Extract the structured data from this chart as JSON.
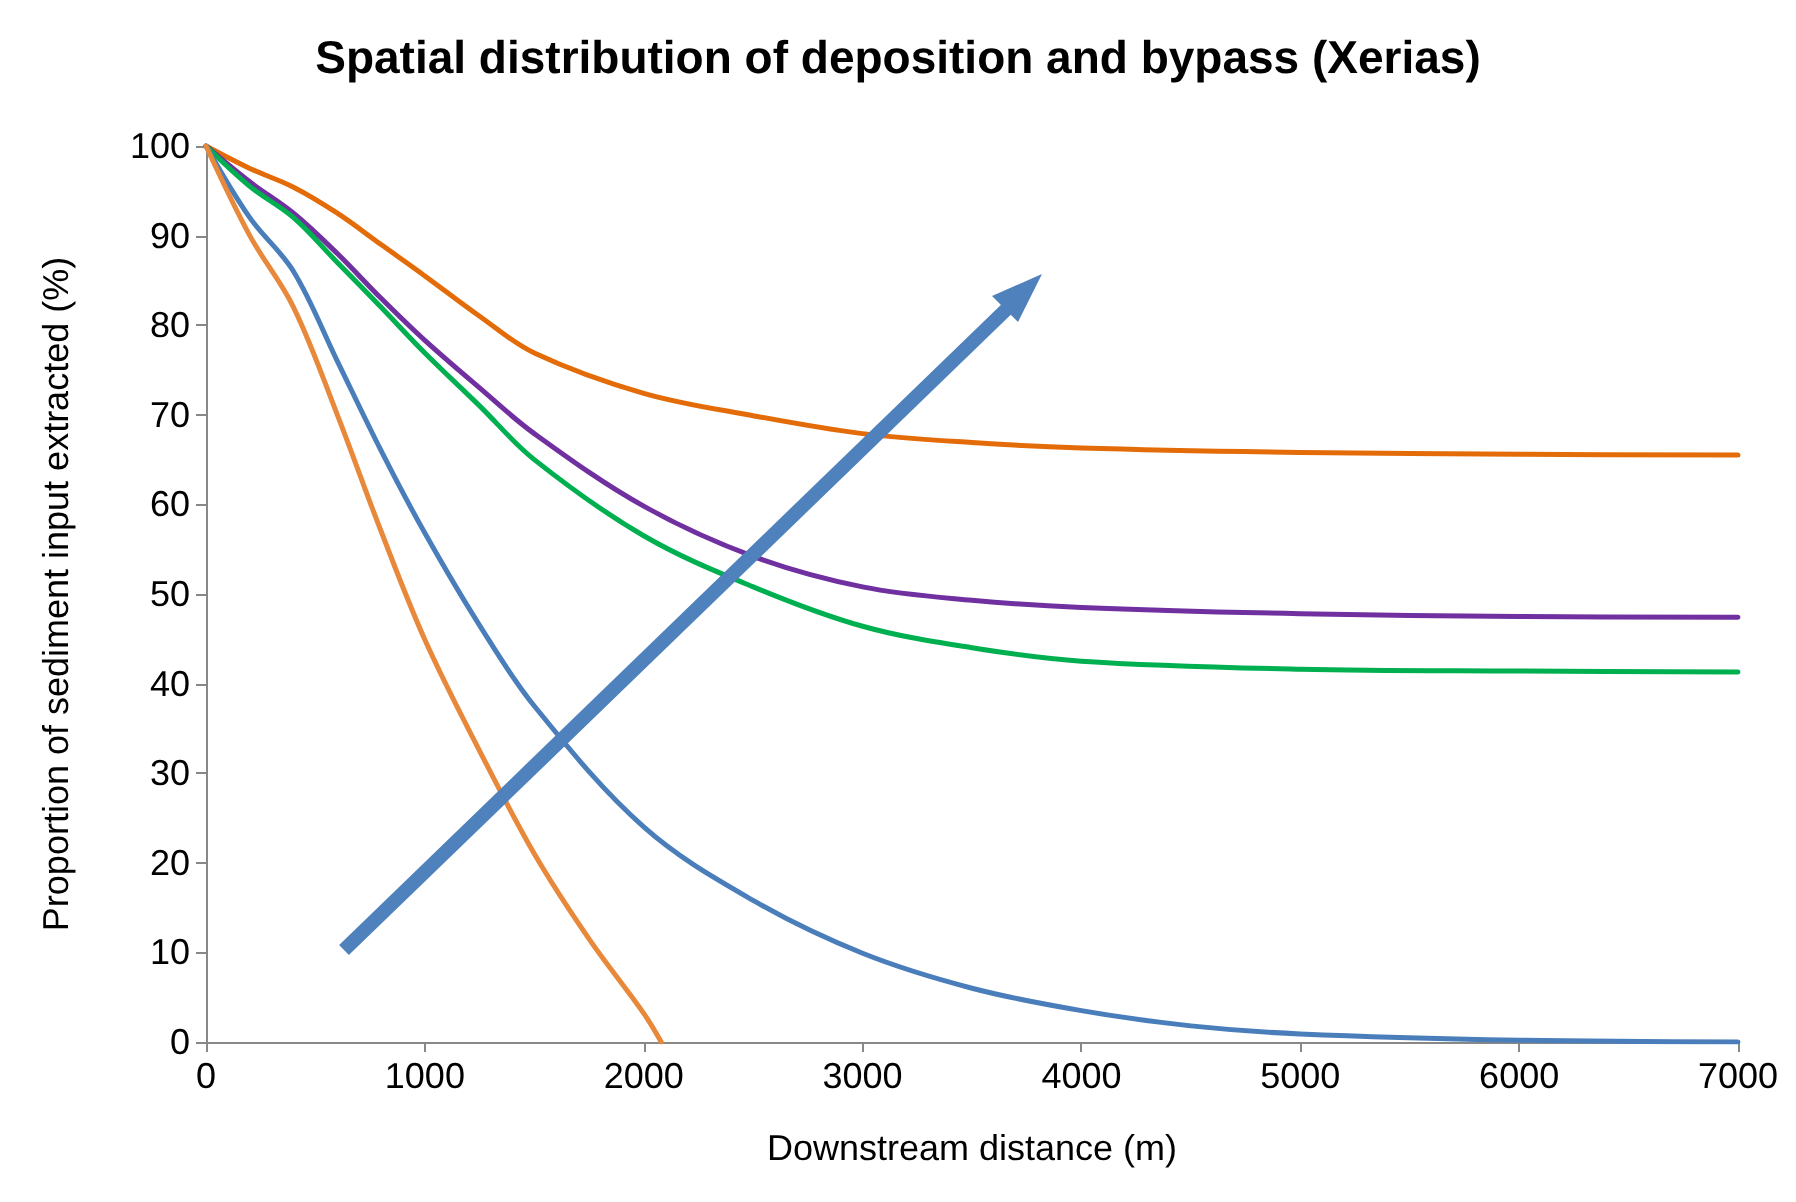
{
  "chart_data": {
    "type": "line",
    "title": "Spatial distribution of deposition and bypass (Xerias)",
    "xlabel": "Downstream distance (m)",
    "ylabel": "Proportion of sediment input extracted (%)",
    "xlim": [
      0,
      7000
    ],
    "xticks": [
      0,
      1000,
      2000,
      3000,
      4000,
      5000,
      6000,
      7000
    ],
    "ylim": [
      0,
      100
    ],
    "yticks": [
      0,
      10,
      20,
      30,
      40,
      50,
      60,
      70,
      80,
      90,
      100
    ],
    "grid": false,
    "marker": "none",
    "line_style": "solid",
    "series": [
      {
        "color": "#e36c09",
        "x": [
          0,
          200,
          400,
          600,
          800,
          1000,
          1250,
          1500,
          2000,
          2500,
          3000,
          3500,
          4000,
          5000,
          6000,
          7000
        ],
        "values": [
          100,
          97.5,
          95.4,
          92.5,
          89,
          85.5,
          81,
          76.9,
          72.4,
          69.9,
          67.9,
          66.9,
          66.3,
          65.8,
          65.6,
          65.5
        ]
      },
      {
        "color": "#7030a0",
        "x": [
          0,
          200,
          400,
          600,
          800,
          1000,
          1250,
          1500,
          2000,
          2500,
          3000,
          3500,
          4000,
          5000,
          6000,
          7000
        ],
        "values": [
          100,
          96,
          92.5,
          88,
          83,
          78.3,
          73,
          67.9,
          59.8,
          54.2,
          50.8,
          49.3,
          48.5,
          47.8,
          47.5,
          47.4
        ]
      },
      {
        "color": "#00b050",
        "x": [
          0,
          200,
          400,
          600,
          800,
          1000,
          1250,
          1500,
          2000,
          2500,
          3000,
          3500,
          4000,
          5000,
          6000,
          7000
        ],
        "values": [
          100,
          95.5,
          92,
          87,
          82,
          76.9,
          71,
          65,
          56.5,
          50.8,
          46.4,
          44,
          42.5,
          41.6,
          41.4,
          41.3
        ]
      },
      {
        "color": "#4a7ebb",
        "x": [
          0,
          200,
          400,
          600,
          800,
          1000,
          1250,
          1500,
          2000,
          2500,
          3000,
          3500,
          4000,
          4500,
          5000,
          6000,
          7000
        ],
        "values": [
          100,
          92,
          86,
          76,
          66,
          56.8,
          46.5,
          37.5,
          24,
          15.8,
          9.9,
          6,
          3.5,
          1.8,
          0.9,
          0.2,
          0
        ]
      },
      {
        "color": "#e8883a",
        "x": [
          0,
          200,
          400,
          600,
          800,
          1000,
          1250,
          1500,
          1750,
          2000,
          2080
        ],
        "values": [
          100,
          90,
          82,
          70,
          57,
          44.9,
          32.5,
          21,
          11.5,
          3.2,
          0
        ]
      }
    ]
  }
}
